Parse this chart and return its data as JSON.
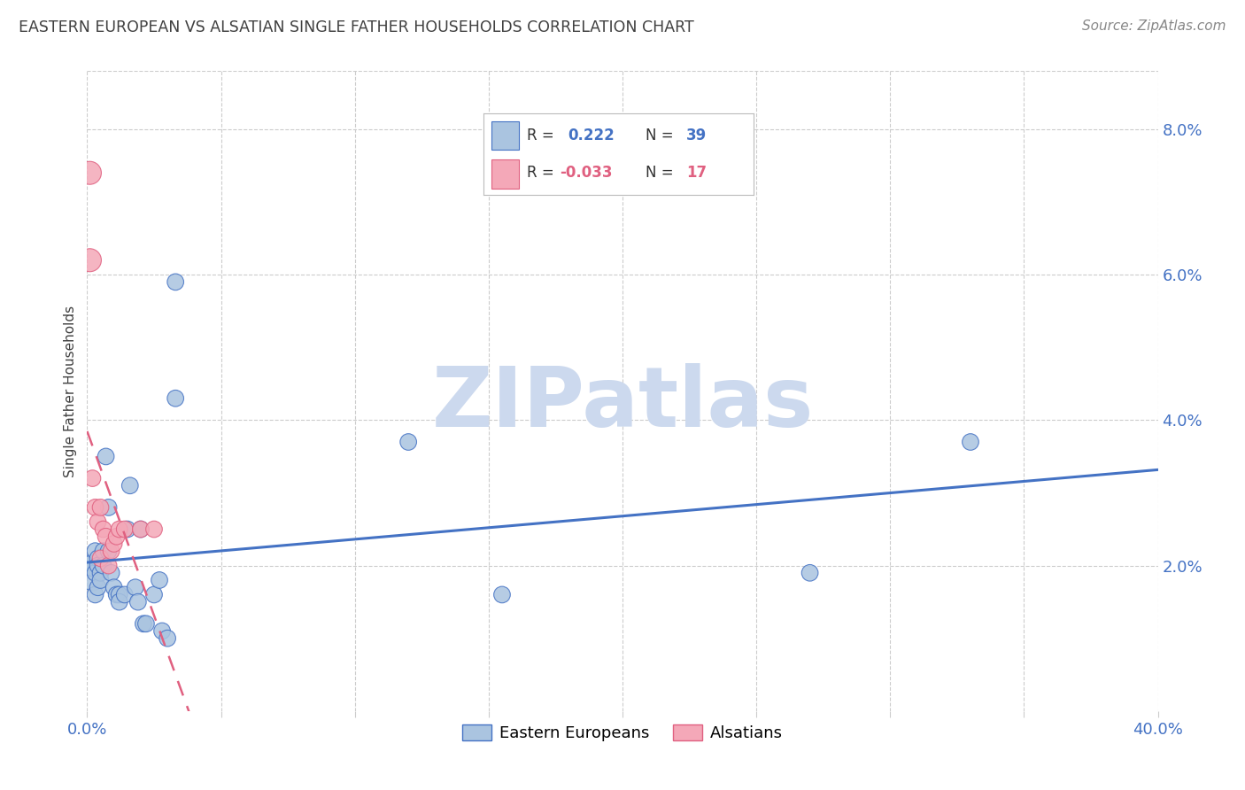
{
  "title": "EASTERN EUROPEAN VS ALSATIAN SINGLE FATHER HOUSEHOLDS CORRELATION CHART",
  "source": "Source: ZipAtlas.com",
  "ylabel": "Single Father Households",
  "watermark": "ZIPatlas",
  "blue_R": 0.222,
  "blue_N": 39,
  "pink_R": -0.033,
  "pink_N": 17,
  "blue_label": "Eastern Europeans",
  "pink_label": "Alsatians",
  "xlim": [
    0.0,
    0.4
  ],
  "ylim": [
    0.0,
    0.088
  ],
  "xticks": [
    0.0,
    0.05,
    0.1,
    0.15,
    0.2,
    0.25,
    0.3,
    0.35,
    0.4
  ],
  "ytick_vals": [
    0.02,
    0.04,
    0.06,
    0.08
  ],
  "ytick_labels": [
    "2.0%",
    "4.0%",
    "6.0%",
    "8.0%"
  ],
  "blue_x": [
    0.001,
    0.002,
    0.002,
    0.003,
    0.003,
    0.003,
    0.004,
    0.004,
    0.004,
    0.005,
    0.005,
    0.006,
    0.006,
    0.007,
    0.008,
    0.008,
    0.009,
    0.01,
    0.011,
    0.012,
    0.012,
    0.014,
    0.015,
    0.016,
    0.018,
    0.019,
    0.02,
    0.021,
    0.022,
    0.025,
    0.027,
    0.028,
    0.03,
    0.033,
    0.033,
    0.12,
    0.155,
    0.27,
    0.33
  ],
  "blue_y": [
    0.02,
    0.018,
    0.02,
    0.022,
    0.019,
    0.016,
    0.021,
    0.02,
    0.017,
    0.019,
    0.018,
    0.022,
    0.02,
    0.035,
    0.028,
    0.022,
    0.019,
    0.017,
    0.016,
    0.016,
    0.015,
    0.016,
    0.025,
    0.031,
    0.017,
    0.015,
    0.025,
    0.012,
    0.012,
    0.016,
    0.018,
    0.011,
    0.01,
    0.059,
    0.043,
    0.037,
    0.016,
    0.019,
    0.037
  ],
  "pink_x": [
    0.001,
    0.001,
    0.002,
    0.003,
    0.004,
    0.005,
    0.005,
    0.006,
    0.007,
    0.008,
    0.009,
    0.01,
    0.011,
    0.012,
    0.014,
    0.02,
    0.025
  ],
  "pink_y": [
    0.074,
    0.062,
    0.032,
    0.028,
    0.026,
    0.028,
    0.021,
    0.025,
    0.024,
    0.02,
    0.022,
    0.023,
    0.024,
    0.025,
    0.025,
    0.025,
    0.025
  ],
  "blue_color": "#aac4e0",
  "pink_color": "#f4a8b8",
  "blue_edge_color": "#4472c4",
  "pink_edge_color": "#e06080",
  "blue_line_color": "#4472c4",
  "pink_line_color": "#e06080",
  "title_color": "#404040",
  "tick_color": "#4472c4",
  "grid_color": "#cccccc",
  "watermark_color": "#ccd9ee",
  "background_color": "#ffffff",
  "legend_text_color": "#333333",
  "source_color": "#888888"
}
